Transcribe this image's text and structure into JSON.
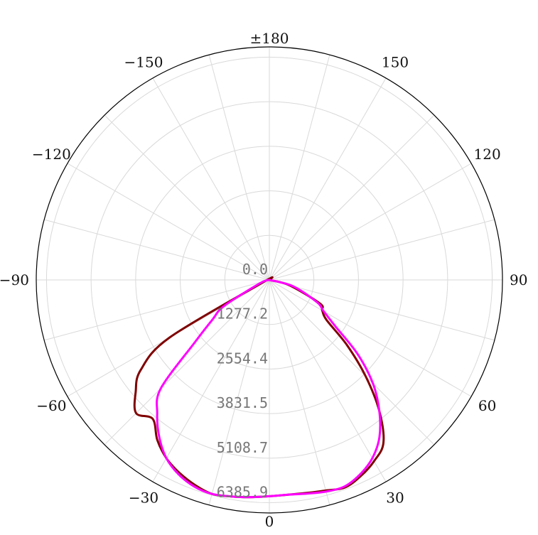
{
  "chart_data": {
    "type": "polar-line",
    "title": "",
    "angle_unit": "degrees",
    "angle_zero": "bottom",
    "angle_direction": "counterclockwise-positive-right",
    "angle_ticks": [
      {
        "angle": 0,
        "label": "0"
      },
      {
        "angle": 30,
        "label": "30"
      },
      {
        "angle": 60,
        "label": "60"
      },
      {
        "angle": 90,
        "label": "90"
      },
      {
        "angle": 120,
        "label": "120"
      },
      {
        "angle": 150,
        "label": "150"
      },
      {
        "angle": 180,
        "label": "±180"
      },
      {
        "angle": -150,
        "label": "−150"
      },
      {
        "angle": -120,
        "label": "−120"
      },
      {
        "angle": -90,
        "label": "−90"
      },
      {
        "angle": -60,
        "label": "−60"
      },
      {
        "angle": -30,
        "label": "−30"
      }
    ],
    "radial_ticks": [
      "0.0",
      "1277.2",
      "2554.4",
      "3831.5",
      "5108.7",
      "6385.9"
    ],
    "radial_max": 6385.9,
    "grid": true,
    "series": [
      {
        "color": "#800000",
        "points": [
          [
            -90,
            0
          ],
          [
            -70,
            180
          ],
          [
            -60,
            3300
          ],
          [
            -55,
            4500
          ],
          [
            -50,
            5000
          ],
          [
            -45,
            5400
          ],
          [
            -40,
            5200
          ],
          [
            -35,
            5600
          ],
          [
            -30,
            5900
          ],
          [
            -25,
            6100
          ],
          [
            -20,
            6250
          ],
          [
            -15,
            6350
          ],
          [
            -10,
            6300
          ],
          [
            -5,
            6250
          ],
          [
            0,
            6200
          ],
          [
            5,
            6180
          ],
          [
            10,
            6200
          ],
          [
            15,
            6250
          ],
          [
            20,
            6330
          ],
          [
            25,
            6200
          ],
          [
            30,
            6000
          ],
          [
            35,
            5700
          ],
          [
            40,
            4900
          ],
          [
            45,
            3900
          ],
          [
            50,
            2900
          ],
          [
            55,
            2000
          ],
          [
            60,
            1750
          ],
          [
            65,
            1600
          ],
          [
            75,
            600
          ],
          [
            90,
            0
          ]
        ]
      },
      {
        "color": "#ff00ff",
        "points": [
          [
            -90,
            0
          ],
          [
            -70,
            300
          ],
          [
            -60,
            1500
          ],
          [
            -55,
            2000
          ],
          [
            -50,
            2800
          ],
          [
            -45,
            4400
          ],
          [
            -40,
            5000
          ],
          [
            -35,
            5500
          ],
          [
            -30,
            5900
          ],
          [
            -25,
            6150
          ],
          [
            -20,
            6300
          ],
          [
            -15,
            6350
          ],
          [
            -10,
            6300
          ],
          [
            -5,
            6250
          ],
          [
            0,
            6200
          ],
          [
            5,
            6180
          ],
          [
            10,
            6220
          ],
          [
            15,
            6280
          ],
          [
            20,
            6300
          ],
          [
            25,
            6150
          ],
          [
            30,
            5900
          ],
          [
            35,
            5500
          ],
          [
            40,
            4900
          ],
          [
            45,
            4200
          ],
          [
            50,
            3300
          ],
          [
            55,
            2300
          ],
          [
            60,
            1800
          ],
          [
            65,
            1500
          ],
          [
            75,
            700
          ],
          [
            90,
            0
          ]
        ]
      }
    ]
  }
}
